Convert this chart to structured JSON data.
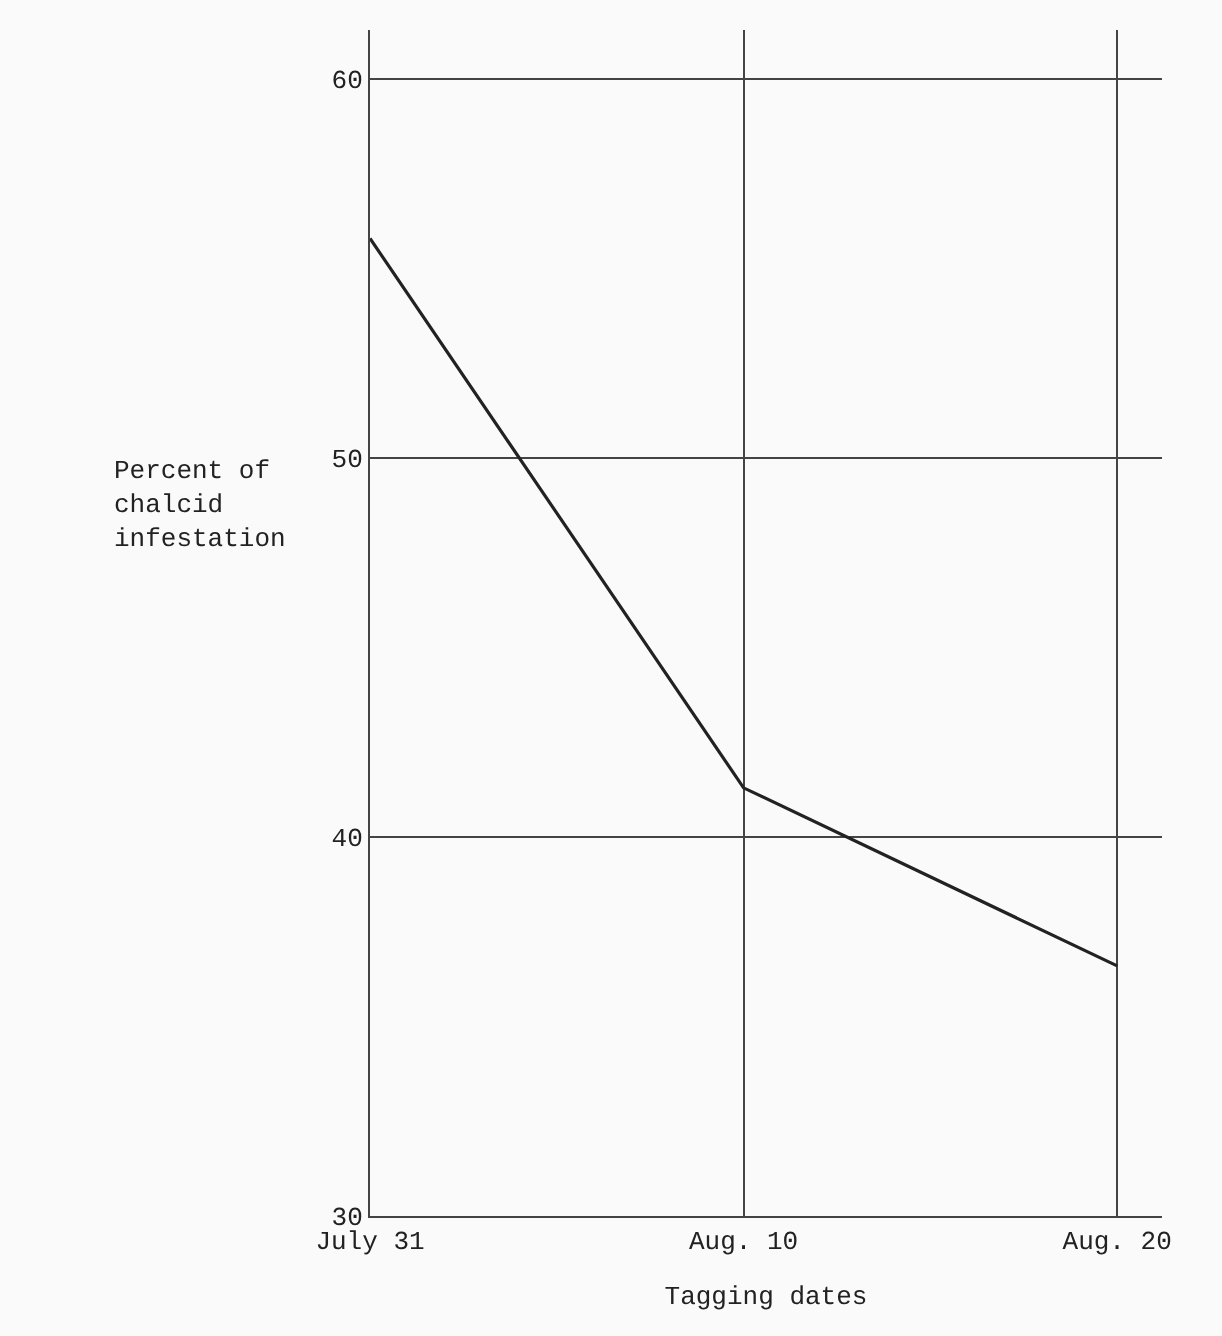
{
  "chart_data": {
    "type": "line",
    "xlabel": "Tagging dates",
    "ylabel": "Percent of\nchalcid\ninfestation",
    "categories": [
      "July 31",
      "Aug. 10",
      "Aug. 20"
    ],
    "series": [
      {
        "color": "#222222",
        "values": [
          55.8,
          41.3,
          36.6
        ]
      }
    ],
    "ylim": [
      30,
      61.3
    ],
    "yticks": [
      30,
      40,
      50,
      60
    ],
    "grid": true,
    "marker": "none",
    "line_style": "solid"
  }
}
